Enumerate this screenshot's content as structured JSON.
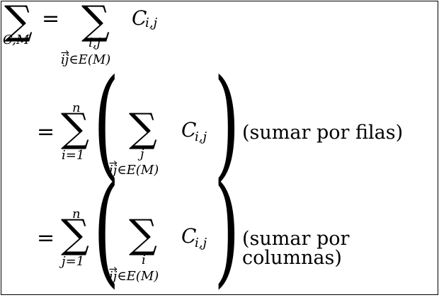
{
  "lines": [
    {
      "lhs_sum": "∑",
      "lhs_sub": "C,M",
      "eq": "=",
      "sum": "∑",
      "sum_sub1": "i,j",
      "sum_sub2_vec": "ij",
      "sum_sub2_rest": "∈E(M)",
      "term": "C",
      "term_sub": "i,j"
    },
    {
      "eq": "=",
      "sum": "∑",
      "sum_upper": "n",
      "sum_lower": "i=1",
      "inner_sum": "∑",
      "inner_sub1": "j",
      "inner_sub2_vec": "ij",
      "inner_sub2_rest": "∈E(M)",
      "term": "C",
      "term_sub": "i,j",
      "paren_left": "(",
      "paren_right": ")",
      "note": "(sumar por filas)"
    },
    {
      "eq": "=",
      "sum": "∑",
      "sum_upper": "n",
      "sum_lower": "j=1",
      "inner_sum": "∑",
      "inner_sub1": "i",
      "inner_sub2_vec": "ij",
      "inner_sub2_rest": "∈E(M)",
      "term": "C",
      "term_sub": "i,j",
      "paren_left": "(",
      "paren_right": ")",
      "note": "(sumar por columnas)"
    }
  ]
}
